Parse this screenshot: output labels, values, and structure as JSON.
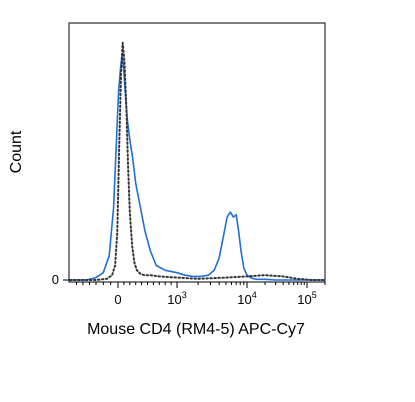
{
  "chart_data": {
    "type": "line",
    "title": "",
    "xlabel": "Mouse CD4 (RM4-5) APC-Cy7",
    "ylabel": "Count",
    "x_scale": "biexponential",
    "xlim": [
      -700,
      200000
    ],
    "ylim": [
      0,
      100
    ],
    "x_ticks": [
      {
        "value": 0,
        "label": "0",
        "sup": ""
      },
      {
        "value": 1000,
        "label": "10",
        "sup": "3"
      },
      {
        "value": 10000,
        "label": "10",
        "sup": "4"
      },
      {
        "value": 100000,
        "label": "10",
        "sup": "5"
      }
    ],
    "y_ticks": [
      {
        "value": 0,
        "label": "0"
      }
    ],
    "grid": false,
    "legend": "none",
    "series": [
      {
        "style": "solid",
        "color": "#1f6fd6",
        "x": [
          -700,
          -450,
          -300,
          -200,
          -120,
          -60,
          -20,
          10,
          40,
          70,
          100,
          130,
          160,
          200,
          250,
          300,
          380,
          460,
          550,
          650,
          800,
          1000,
          1300,
          1700,
          2200,
          2800,
          3400,
          4000,
          4600,
          5200,
          5800,
          6400,
          7000,
          7600,
          8200,
          9000,
          10000,
          11500,
          13000,
          15000,
          20000,
          30000,
          50000,
          80000,
          120000,
          200000
        ],
        "y": [
          0,
          0,
          1,
          3,
          10,
          30,
          58,
          78,
          87,
          93,
          86,
          75,
          66,
          58,
          50,
          40,
          30,
          20,
          12,
          6,
          4,
          3,
          2,
          1.5,
          1.5,
          2,
          4,
          9,
          18,
          26,
          28,
          26,
          27,
          20,
          12,
          5,
          2,
          1,
          0.5,
          0.3,
          0.3,
          0,
          0,
          0,
          0,
          0
        ]
      },
      {
        "style": "dotted",
        "color": "#333333",
        "x": [
          -700,
          -300,
          -150,
          -80,
          -40,
          -10,
          20,
          50,
          80,
          110,
          140,
          170,
          200,
          240,
          280,
          320,
          380,
          450,
          550,
          700,
          1000,
          2000,
          5000,
          10000,
          20000,
          40000,
          70000,
          120000,
          200000
        ],
        "y": [
          0,
          0,
          0.5,
          2,
          6,
          20,
          55,
          85,
          98,
          90,
          72,
          48,
          28,
          14,
          7,
          4,
          2.5,
          2,
          2,
          1.5,
          1,
          0.5,
          1,
          1.5,
          2,
          1.5,
          0.5,
          0,
          0
        ]
      }
    ]
  }
}
